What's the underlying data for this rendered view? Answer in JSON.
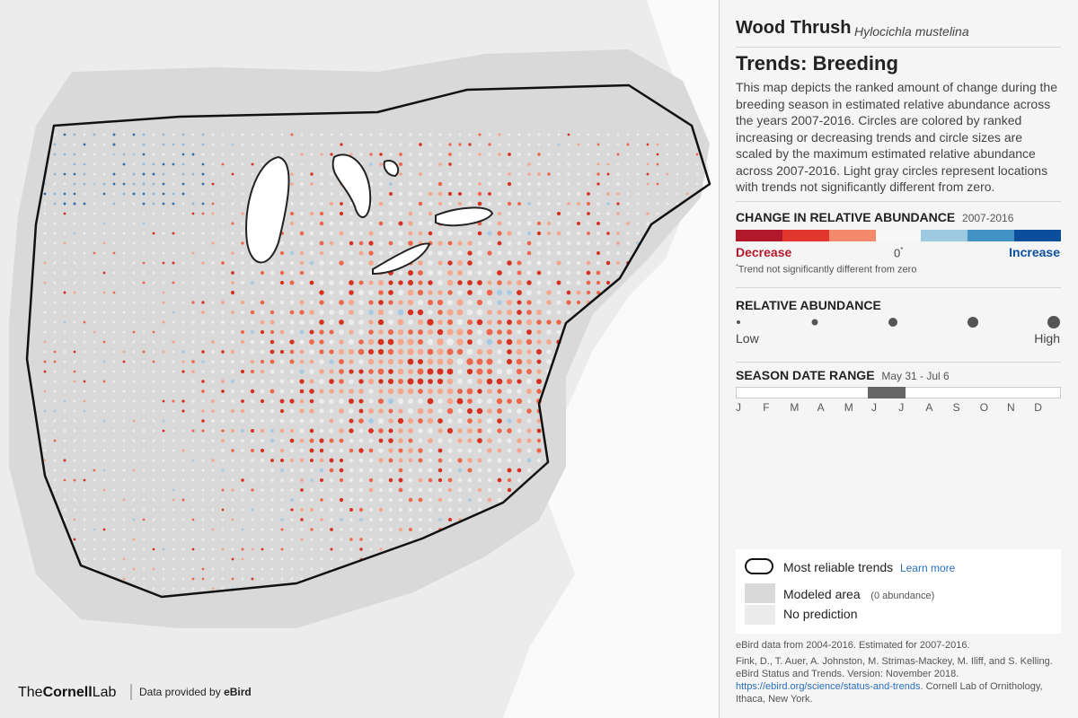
{
  "species": {
    "common_name": "Wood Thrush",
    "scientific_name": "Hylocichla mustelina"
  },
  "heading": "Trends: Breeding",
  "description": "This map depicts the ranked amount of change during the breeding season in estimated relative abundance across the years 2007-2016. Circles are colored by ranked increasing or decreasing trends and circle sizes are scaled by the maximum estimated relative abundance across 2007-2016. Light gray circles represent locations with trends not significantly different from zero.",
  "change_legend": {
    "title": "CHANGE IN RELATIVE ABUNDANCE",
    "years": "2007-2016",
    "decrease": "Decrease",
    "zero": "0",
    "asterisk": "*",
    "increase": "Increase",
    "footnote": "Trend not significantly different from zero"
  },
  "abundance_legend": {
    "title": "RELATIVE ABUNDANCE",
    "low": "Low",
    "high": "High"
  },
  "season": {
    "title": "SEASON DATE RANGE",
    "range": "May 31 - Jul 6",
    "months": [
      "J",
      "F",
      "M",
      "A",
      "M",
      "J",
      "J",
      "A",
      "S",
      "O",
      "N",
      "D"
    ]
  },
  "key": {
    "reliable": "Most reliable trends",
    "learn_more": "Learn more",
    "modeled": "Modeled area",
    "modeled_note": "(0 abundance)",
    "no_prediction": "No prediction"
  },
  "citation": {
    "data_note": "eBird data from 2004-2016. Estimated for 2007-2016.",
    "text": "Fink, D., T. Auer, A. Johnston, M. Strimas-Mackey, M. Iliff, and S. Kelling. eBird Status and Trends. Version: November 2018.",
    "link": "https://ebird.org/science/status-and-trends",
    "rest": ". Cornell Lab of Ornithology, Ithaca, New York."
  },
  "footer": {
    "logo_the": "The",
    "logo_cornell": "Cornell",
    "logo_lab": "Lab",
    "provided_by": "Data provided by",
    "ebird": "eBird"
  }
}
